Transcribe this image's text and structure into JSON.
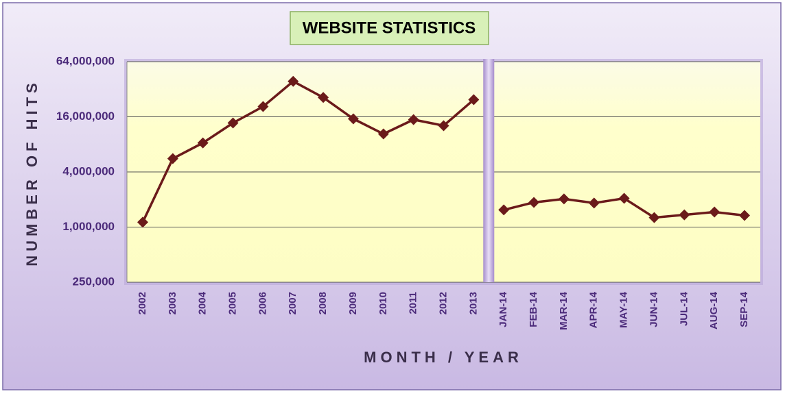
{
  "chart_data": {
    "type": "line",
    "title": "WEBSITE STATISTICS",
    "x_label": "MONTH / YEAR",
    "y_label": "NUMBER OF HITS",
    "categories": [
      "2002",
      "2003",
      "2004",
      "2005",
      "2006",
      "2007",
      "2008",
      "2009",
      "2010",
      "2011",
      "2012",
      "2013",
      "JAN-14",
      "FEB-14",
      "MAR-14",
      "APR-14",
      "MAY-14",
      "JUN-14",
      "JUL-14",
      "AUG-14",
      "SEP-14"
    ],
    "values": [
      1130000,
      5600000,
      8300000,
      13700000,
      20700000,
      39000000,
      26000000,
      15200000,
      10400000,
      14900000,
      12800000,
      24600000,
      1540000,
      1860000,
      2030000,
      1830000,
      2060000,
      1270000,
      1360000,
      1460000,
      1340000
    ],
    "color": "#6b1a1a",
    "break_after": 11,
    "y_scale": "log",
    "ylim": [
      250000,
      64000000
    ],
    "yticks": [
      {
        "value": 250000,
        "label": "250,000"
      },
      {
        "value": 1000000,
        "label": "1,000,000"
      },
      {
        "value": 4000000,
        "label": "4,000,000"
      },
      {
        "value": 16000000,
        "label": "16,000,000"
      },
      {
        "value": 64000000,
        "label": "64,000,000"
      }
    ],
    "grid": true
  }
}
